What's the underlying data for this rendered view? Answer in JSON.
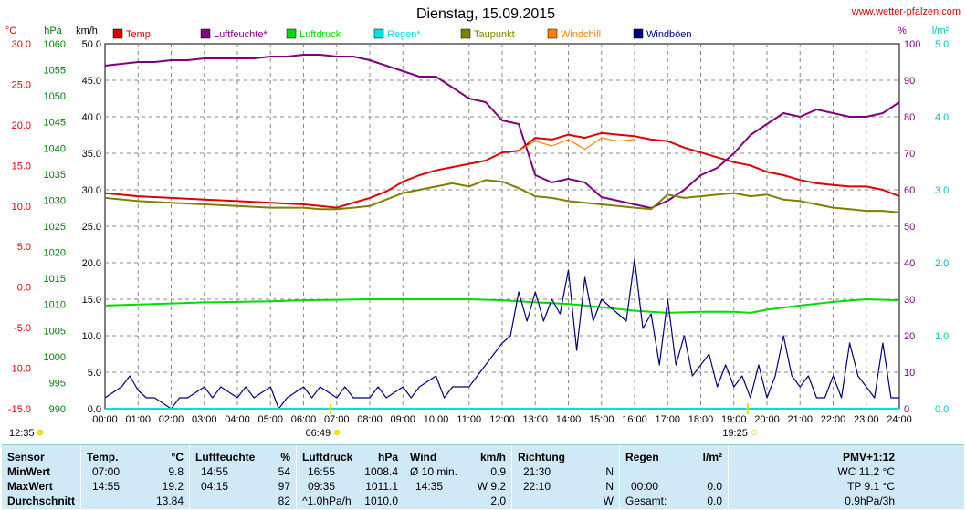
{
  "chart_data": {
    "type": "line",
    "title": "Dienstag, 15.09.2015",
    "website": "www.wetter-pfalzen.com",
    "grid": true,
    "x_axis": {
      "ticks": [
        "00:00",
        "01:00",
        "02:00",
        "03:00",
        "04:00",
        "05:00",
        "06:00",
        "07:00",
        "08:00",
        "09:00",
        "10:00",
        "11:00",
        "12:00",
        "13:00",
        "14:00",
        "15:00",
        "16:00",
        "17:00",
        "18:00",
        "19:00",
        "20:00",
        "21:00",
        "22:00",
        "23:00",
        "24:00"
      ],
      "range_hours": [
        0,
        24
      ]
    },
    "sun": {
      "rise_marker": "06:49",
      "set_marker": "19:25",
      "left_label": "12:35"
    },
    "axes": {
      "temp": {
        "unit": "°C",
        "min": -15,
        "max": 30,
        "step": 5,
        "color": "#e00000",
        "ticks": [
          "30.0",
          "25.0",
          "20.0",
          "15.0",
          "10.0",
          "5.0",
          "0.0",
          "-5.0",
          "-10.0",
          "-15.0"
        ]
      },
      "pressure": {
        "unit": "hPa",
        "min": 990,
        "max": 1060,
        "step": 5,
        "color": "#008000",
        "ticks": [
          "1060",
          "1055",
          "1050",
          "1045",
          "1040",
          "1035",
          "1030",
          "1025",
          "1020",
          "1015",
          "1010",
          "1005",
          "1000",
          "995",
          "990"
        ]
      },
      "wind": {
        "unit": "km/h",
        "min": 0,
        "max": 50,
        "step": 5,
        "color": "#000000",
        "ticks": [
          "50.0",
          "45.0",
          "40.0",
          "35.0",
          "30.0",
          "25.0",
          "20.0",
          "15.0",
          "10.0",
          "5.0",
          "0.0"
        ]
      },
      "humidity": {
        "unit": "%",
        "min": 0,
        "max": 100,
        "step": 10,
        "color": "#800080",
        "ticks": [
          "100",
          "90",
          "80",
          "70",
          "60",
          "50",
          "40",
          "30",
          "20",
          "10",
          "0"
        ]
      },
      "rain": {
        "unit": "l/m²",
        "min": 0,
        "max": 5,
        "step": 1,
        "color": "#00c0c0",
        "ticks": [
          "5.0",
          "4.0",
          "3.0",
          "2.0",
          "1.0",
          "0.0"
        ]
      }
    },
    "legend": [
      {
        "name": "Temp.",
        "color": "#e00000"
      },
      {
        "name": "Luftfeuchte*",
        "color": "#800080"
      },
      {
        "name": "Luftdruck",
        "color": "#00dd00"
      },
      {
        "name": "Regen*",
        "color": "#00e0e0"
      },
      {
        "name": "Taupunkt",
        "color": "#808000"
      },
      {
        "name": "Windchill",
        "color": "#ff8000"
      },
      {
        "name": "Windböen",
        "color": "#000080"
      }
    ],
    "series": [
      {
        "name": "Temp.",
        "axis": "temp",
        "color": "#e00000",
        "x": [
          0,
          1,
          2,
          3,
          4,
          5,
          6,
          6.5,
          7,
          7.5,
          8,
          8.5,
          9,
          9.5,
          10,
          10.5,
          11,
          11.5,
          12,
          12.5,
          13,
          13.5,
          14,
          14.5,
          15,
          15.5,
          16,
          16.5,
          17,
          17.5,
          18,
          18.5,
          19,
          19.5,
          20,
          20.5,
          21,
          21.5,
          22,
          22.5,
          23,
          23.5,
          24
        ],
        "y": [
          11.6,
          11.2,
          11.0,
          10.8,
          10.6,
          10.4,
          10.2,
          10.0,
          9.8,
          10.4,
          11.0,
          11.8,
          13.0,
          13.8,
          14.4,
          14.8,
          15.2,
          15.6,
          16.6,
          16.8,
          18.4,
          18.2,
          18.8,
          18.4,
          19.0,
          18.8,
          18.6,
          18.2,
          18.0,
          17.2,
          16.6,
          16.0,
          15.4,
          15.0,
          14.2,
          13.8,
          13.2,
          12.8,
          12.6,
          12.4,
          12.4,
          12.0,
          11.2
        ]
      },
      {
        "name": "Luftfeuchte*",
        "axis": "humidity",
        "color": "#800080",
        "x": [
          0,
          0.5,
          1,
          1.5,
          2,
          2.5,
          3,
          3.5,
          4,
          4.5,
          5,
          5.5,
          6,
          6.5,
          7,
          7.5,
          8,
          8.5,
          9,
          9.5,
          10,
          10.5,
          11,
          11.5,
          12,
          12.5,
          13,
          13.5,
          14,
          14.5,
          15,
          15.5,
          16,
          16.5,
          17,
          17.5,
          18,
          18.5,
          19,
          19.5,
          20,
          20.5,
          21,
          21.5,
          22,
          22.5,
          23,
          23.5,
          24
        ],
        "y": [
          94,
          94.5,
          95,
          95,
          95.5,
          95.5,
          96,
          96,
          96,
          96,
          96.5,
          96.5,
          97,
          97,
          96.5,
          96.5,
          95.5,
          94,
          92.5,
          91,
          91,
          88,
          85,
          84,
          79,
          78,
          64,
          62,
          63,
          62,
          58,
          57,
          56,
          55,
          57,
          60,
          64,
          66,
          70,
          75,
          78,
          81,
          80,
          82,
          81,
          80,
          80,
          81,
          84
        ]
      },
      {
        "name": "Luftdruck",
        "axis": "pressure",
        "color": "#00dd00",
        "x": [
          0,
          1,
          2,
          3,
          4,
          5,
          6,
          7,
          8,
          9,
          10,
          11,
          12,
          13,
          14,
          15,
          16,
          17,
          18,
          19,
          19.5,
          20,
          21,
          22,
          23,
          24
        ],
        "y": [
          1009.8,
          1010.0,
          1010.2,
          1010.4,
          1010.5,
          1010.6,
          1010.8,
          1010.9,
          1011.0,
          1011.0,
          1011.0,
          1011.0,
          1010.8,
          1010.4,
          1010.1,
          1009.5,
          1008.8,
          1008.4,
          1008.6,
          1008.6,
          1008.4,
          1009.0,
          1009.8,
          1010.5,
          1011.0,
          1010.8
        ]
      },
      {
        "name": "Taupunkt",
        "axis": "temp",
        "color": "#808000",
        "x": [
          0,
          1,
          2,
          3,
          4,
          5,
          6,
          6.5,
          7,
          7.5,
          8,
          8.5,
          9,
          9.5,
          10,
          10.5,
          11,
          11.5,
          12,
          12.5,
          13,
          13.5,
          14,
          14.5,
          15,
          15.5,
          16,
          16.5,
          17,
          17.5,
          18,
          18.5,
          19,
          19.5,
          20,
          20.5,
          21,
          21.5,
          22,
          22.5,
          23,
          23.5,
          24
        ],
        "y": [
          11.0,
          10.6,
          10.4,
          10.2,
          10.0,
          9.8,
          9.8,
          9.6,
          9.6,
          9.8,
          10.0,
          10.8,
          11.6,
          12.0,
          12.4,
          12.8,
          12.4,
          13.2,
          13.0,
          12.2,
          11.2,
          11.0,
          10.6,
          10.4,
          10.2,
          10.0,
          9.8,
          9.6,
          11.4,
          11.0,
          11.2,
          11.4,
          11.6,
          11.2,
          11.4,
          10.8,
          10.6,
          10.2,
          9.8,
          9.6,
          9.4,
          9.4,
          9.2
        ]
      },
      {
        "name": "Windchill",
        "axis": "temp",
        "color": "#ff8000",
        "x": [
          12.5,
          13,
          13.5,
          14,
          14.5,
          15,
          15.5,
          16
        ],
        "y": [
          16.8,
          18.0,
          17.4,
          18.2,
          17.0,
          18.4,
          18.0,
          18.2
        ]
      },
      {
        "name": "Windböen",
        "axis": "wind",
        "color": "#000080",
        "x": [
          0,
          0.5,
          0.75,
          1,
          1.25,
          1.5,
          2,
          2.25,
          2.5,
          3,
          3.25,
          3.5,
          4,
          4.25,
          4.5,
          5,
          5.25,
          5.5,
          6,
          6.25,
          6.5,
          7,
          7.25,
          7.5,
          8,
          8.25,
          8.5,
          9,
          9.25,
          9.5,
          10,
          10.25,
          10.5,
          11,
          11.25,
          11.5,
          12,
          12.25,
          12.5,
          12.75,
          13,
          13.25,
          13.5,
          13.75,
          14,
          14.25,
          14.5,
          14.75,
          15,
          15.25,
          15.5,
          15.75,
          16,
          16.25,
          16.5,
          16.75,
          17,
          17.25,
          17.5,
          17.75,
          18,
          18.25,
          18.5,
          18.75,
          19,
          19.25,
          19.5,
          19.75,
          20,
          20.25,
          20.5,
          20.75,
          21,
          21.25,
          21.5,
          21.75,
          22,
          22.25,
          22.5,
          22.75,
          23,
          23.25,
          23.5,
          23.75,
          24
        ],
        "y": [
          1.5,
          3.0,
          4.5,
          2.5,
          1.5,
          1.5,
          0,
          1.5,
          1.5,
          3.0,
          1.5,
          3.0,
          1.5,
          3.0,
          1.5,
          3.0,
          0,
          1.5,
          3.0,
          1.5,
          3.0,
          1.5,
          3.0,
          1.5,
          1.5,
          3.0,
          1.5,
          3.0,
          1.5,
          3.0,
          4.5,
          1.5,
          3.0,
          3.0,
          4.5,
          6.0,
          9.0,
          10.0,
          16.0,
          12.0,
          16.0,
          12.0,
          15.0,
          13.0,
          19.0,
          8.0,
          18.0,
          12.0,
          15.0,
          14.0,
          13.0,
          12.0,
          20.5,
          11.0,
          13.0,
          6.0,
          15.0,
          6.0,
          10.0,
          4.5,
          6.0,
          7.5,
          3.0,
          6.0,
          3.0,
          4.5,
          1.5,
          6.0,
          1.5,
          4.5,
          10.0,
          4.5,
          3.0,
          4.5,
          1.5,
          1.5,
          4.5,
          1.5,
          9.0,
          4.5,
          3.0,
          1.5,
          9.0,
          1.5,
          1.5
        ]
      },
      {
        "name": "Regen*",
        "axis": "rain",
        "color": "#00e0e0",
        "x": [
          0,
          24
        ],
        "y": [
          0,
          0
        ]
      }
    ]
  },
  "table": {
    "headers": {
      "sensor": "Sensor",
      "temp": "Temp.",
      "temp_unit": "°C",
      "hum": "Luftfeuchte",
      "hum_unit": "%",
      "press": "Luftdruck",
      "press_unit": "hPa",
      "wind": "Wind",
      "wind_unit": "km/h",
      "dir": "Richtung",
      "rain": "Regen",
      "rain_unit": "l/m²",
      "pmv": "PMV+1:12"
    },
    "rows": [
      {
        "label": "MinWert",
        "temp_time": "07:00",
        "temp_val": "9.8",
        "hum_time": "14:55",
        "hum_val": "54",
        "press_time": "16:55",
        "press_val": "1008.4",
        "wind_lbl": "Ø 10 min.",
        "wind_val": "0.9",
        "dir_time": "21:30",
        "dir_val": "N",
        "rain_time": "",
        "rain_val": "",
        "pmv": "WC 11.2 °C"
      },
      {
        "label": "MaxWert",
        "temp_time": "14:55",
        "temp_val": "19.2",
        "hum_time": "04:15",
        "hum_val": "97",
        "press_time": "09:35",
        "press_val": "1011.1",
        "wind_lbl": "14:35",
        "wind_val": "W 9.2",
        "dir_time": "22:10",
        "dir_val": "N",
        "rain_time": "00:00",
        "rain_val": "0.0",
        "pmv": "TP 9.1 °C"
      },
      {
        "label": "Durchschnitt",
        "temp_time": "",
        "temp_val": "13.84",
        "hum_time": "",
        "hum_val": "82",
        "press_time": "^1.0hPa/h",
        "press_val": "1010.0",
        "wind_lbl": "",
        "wind_val": "2.0",
        "dir_time": "",
        "dir_val": "W",
        "rain_time": "Gesamt:",
        "rain_val": "0.0",
        "pmv": "0.9hPa/3h"
      }
    ]
  }
}
